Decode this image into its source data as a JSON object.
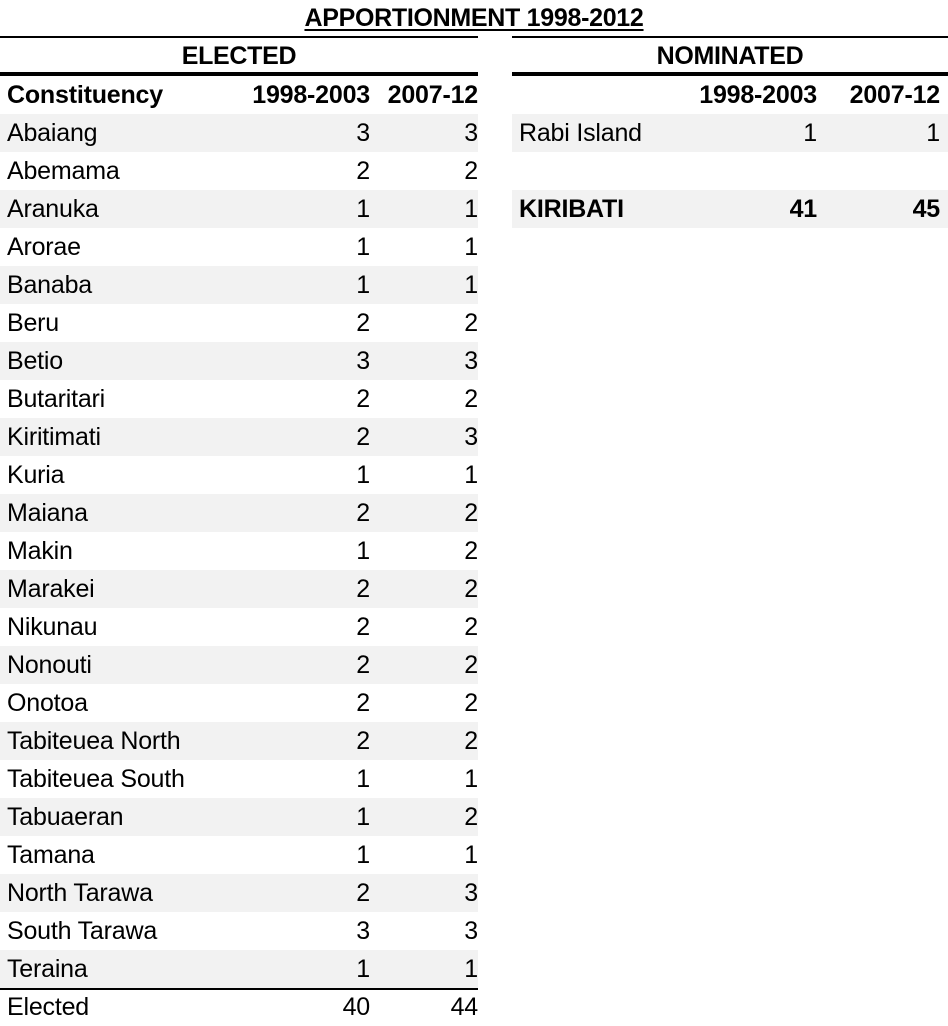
{
  "title": "APPORTIONMENT 1998-2012",
  "elected": {
    "heading": "ELECTED",
    "columns": [
      "Constituency",
      "1998-2003",
      "2007-12"
    ],
    "rows": [
      {
        "name": "Abaiang",
        "a": "3",
        "b": "3"
      },
      {
        "name": "Abemama",
        "a": "2",
        "b": "2"
      },
      {
        "name": "Aranuka",
        "a": "1",
        "b": "1"
      },
      {
        "name": "Arorae",
        "a": "1",
        "b": "1"
      },
      {
        "name": "Banaba",
        "a": "1",
        "b": "1"
      },
      {
        "name": "Beru",
        "a": "2",
        "b": "2"
      },
      {
        "name": "Betio",
        "a": "3",
        "b": "3"
      },
      {
        "name": "Butaritari",
        "a": "2",
        "b": "2"
      },
      {
        "name": "Kiritimati",
        "a": "2",
        "b": "3"
      },
      {
        "name": "Kuria",
        "a": "1",
        "b": "1"
      },
      {
        "name": "Maiana",
        "a": "2",
        "b": "2"
      },
      {
        "name": "Makin",
        "a": "1",
        "b": "2"
      },
      {
        "name": "Marakei",
        "a": "2",
        "b": "2"
      },
      {
        "name": "Nikunau",
        "a": "2",
        "b": "2"
      },
      {
        "name": "Nonouti",
        "a": "2",
        "b": "2"
      },
      {
        "name": "Onotoa",
        "a": "2",
        "b": "2"
      },
      {
        "name": "Tabiteuea North",
        "a": "2",
        "b": "2"
      },
      {
        "name": "Tabiteuea South",
        "a": "1",
        "b": "1"
      },
      {
        "name": "Tabuaeran",
        "a": "1",
        "b": "2"
      },
      {
        "name": "Tamana",
        "a": "1",
        "b": "1"
      },
      {
        "name": "North Tarawa",
        "a": "2",
        "b": "3"
      },
      {
        "name": "South Tarawa",
        "a": "3",
        "b": "3"
      },
      {
        "name": "Teraina",
        "a": "1",
        "b": "1"
      }
    ],
    "total": {
      "name": "Elected",
      "a": "40",
      "b": "44"
    }
  },
  "nominated": {
    "heading": "NOMINATED",
    "columns": [
      "",
      "1998-2003",
      "2007-12"
    ],
    "rows": [
      {
        "name": "Rabi Island",
        "a": "1",
        "b": "1"
      }
    ],
    "total": {
      "name": "KIRIBATI",
      "a": "41",
      "b": "45"
    }
  }
}
